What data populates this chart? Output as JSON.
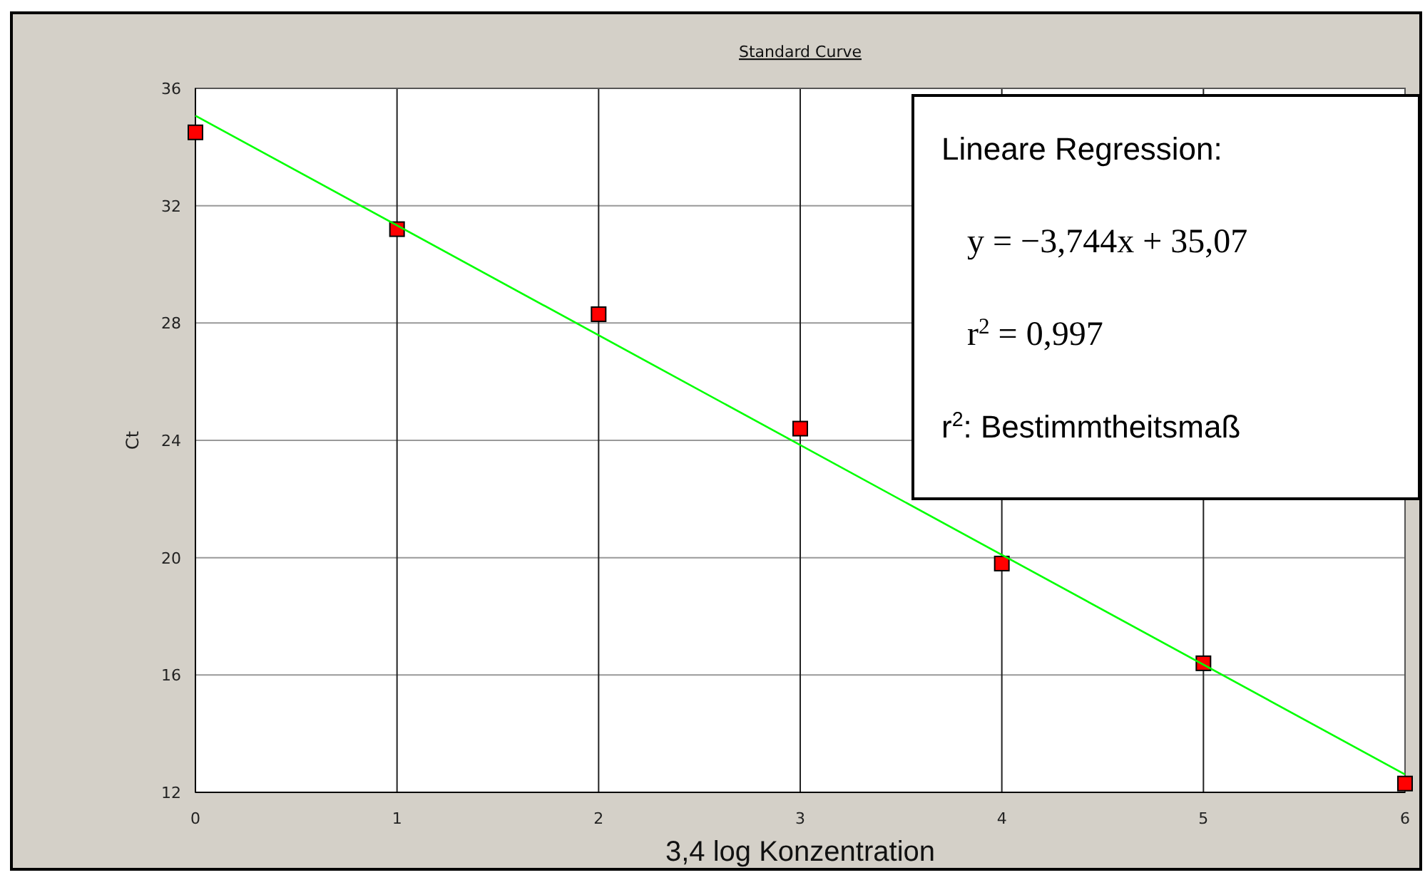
{
  "chart_data": {
    "type": "scatter",
    "title": "Standard Curve",
    "xlabel": "3,4 log Konzentration",
    "ylabel": "Ct",
    "x": [
      0,
      1,
      2,
      3,
      4,
      5,
      6
    ],
    "series": [
      {
        "color": "#ff0000",
        "values": [
          34.5,
          31.2,
          28.3,
          24.4,
          19.8,
          16.4,
          12.3
        ],
        "marker": "square"
      },
      {
        "type": "line",
        "color": "#00ff00",
        "x": [
          0,
          6
        ],
        "values": [
          35.07,
          12.61
        ],
        "marker": "none",
        "line_style": "solid"
      }
    ],
    "xlim": [
      0,
      6
    ],
    "xticks": [
      0,
      1,
      2,
      3,
      4,
      5,
      6
    ],
    "ylim": [
      12,
      36
    ],
    "yticks": [
      12,
      16,
      20,
      24,
      28,
      32,
      36
    ],
    "grid": true,
    "annotations": [
      "Lineare Regression:",
      "y = −3,744x + 35,07",
      "r$^{2}$ = 0,997",
      "r$^{2}$: Bestimmtheitsmaß"
    ]
  }
}
